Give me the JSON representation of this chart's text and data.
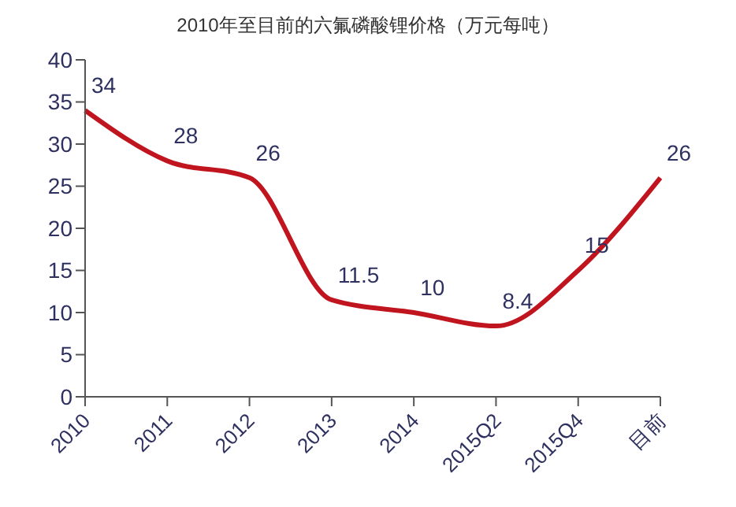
{
  "chart_data": {
    "type": "line",
    "title": "2010年至目前的六氟磷酸锂价格（万元每吨）",
    "categories": [
      "2010",
      "2011",
      "2012",
      "2013",
      "2014",
      "2015Q2",
      "2015Q4",
      "目前"
    ],
    "series": [
      {
        "color": "#c0141e",
        "values": [
          34,
          28,
          26,
          11.5,
          10,
          8.4,
          15,
          26
        ]
      }
    ],
    "ylim": [
      0,
      40
    ],
    "yticks": [
      0,
      5,
      10,
      15,
      20,
      25,
      30,
      35,
      40
    ],
    "grid": false,
    "legend": false,
    "marker": "none",
    "line_style": "solid",
    "data_labels": true
  }
}
